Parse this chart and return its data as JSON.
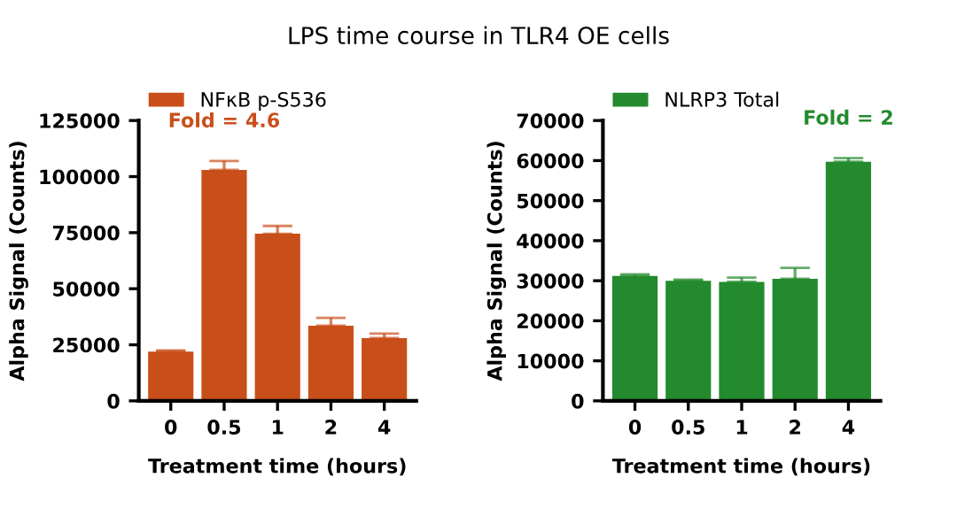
{
  "chart_data": [
    {
      "type": "bar",
      "title": "LPS time course in TLR4 OE cells",
      "xlabel": "Treatment time (hours)",
      "ylabel": "Alpha Signal (Counts)",
      "categories": [
        "0",
        "0.5",
        "1",
        "2",
        "4"
      ],
      "series": [
        {
          "name": "NFκB p-S536",
          "color": "#c94f1a",
          "values": [
            22000,
            103000,
            74500,
            33500,
            28000
          ],
          "errors": [
            [
              22000,
              22500
            ],
            [
              103000,
              107000
            ],
            [
              74500,
              78000
            ],
            [
              33500,
              37000
            ],
            [
              28000,
              30000
            ]
          ]
        }
      ],
      "ylim": [
        0,
        125000
      ],
      "yticks": [
        0,
        25000,
        50000,
        75000,
        100000,
        125000
      ],
      "grid": false,
      "legend": "top",
      "annotations": [
        "Fold = 4.6"
      ]
    },
    {
      "type": "bar",
      "xlabel": "Treatment time (hours)",
      "ylabel": "Alpha Signal (Counts)",
      "categories": [
        "0",
        "0.5",
        "1",
        "2",
        "4"
      ],
      "series": [
        {
          "name": "NLRP3 Total",
          "color": "#238a2e",
          "values": [
            31200,
            30000,
            29700,
            30500,
            59700
          ],
          "errors": [
            [
              31200,
              31600
            ],
            [
              30000,
              30300
            ],
            [
              29700,
              30800
            ],
            [
              30500,
              33200
            ],
            [
              59700,
              60600
            ]
          ]
        }
      ],
      "ylim": [
        0,
        70000
      ],
      "yticks": [
        0,
        10000,
        20000,
        30000,
        40000,
        50000,
        60000,
        70000
      ],
      "grid": false,
      "legend": "top",
      "annotations": [
        "Fold = 2"
      ]
    }
  ]
}
